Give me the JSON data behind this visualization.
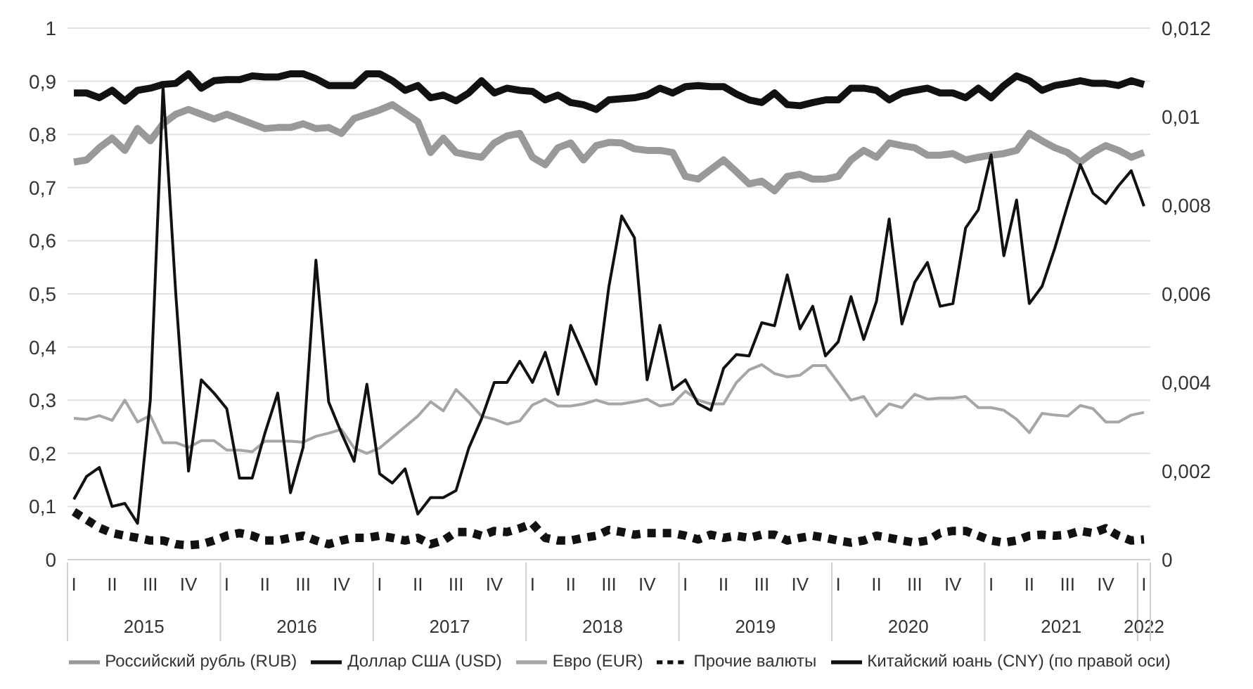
{
  "chart_data": {
    "type": "line",
    "categories": [
      "I",
      null,
      null,
      "II",
      null,
      null,
      "III",
      null,
      null,
      "IV",
      null,
      null,
      "I",
      null,
      null,
      "II",
      null,
      null,
      "III",
      null,
      null,
      "IV",
      null,
      null,
      "I",
      null,
      null,
      "II",
      null,
      null,
      "III",
      null,
      null,
      "IV",
      null,
      null,
      "I",
      null,
      null,
      "II",
      null,
      null,
      "III",
      null,
      null,
      "IV",
      null,
      null,
      "I",
      null,
      null,
      "II",
      null,
      null,
      "III",
      null,
      null,
      "IV",
      null,
      null,
      "I",
      null,
      null,
      "II",
      null,
      null,
      "III",
      null,
      null,
      "IV",
      null,
      null,
      "I",
      null,
      null,
      "II",
      null,
      null,
      "III",
      null,
      null,
      "IV",
      null,
      null,
      "I"
    ],
    "annotations": [
      "2015",
      "2016",
      "2017",
      "2018",
      "2019",
      "2020",
      "2021",
      "2022"
    ],
    "series": [
      {
        "name": "Российский рубль (RUB)",
        "color": "#999999",
        "values": [
          0.748,
          0.752,
          0.775,
          0.793,
          0.77,
          0.811,
          0.788,
          0.82,
          0.838,
          0.847,
          0.838,
          0.829,
          0.838,
          0.829,
          0.82,
          0.811,
          0.813,
          0.813,
          0.82,
          0.811,
          0.813,
          0.802,
          0.83,
          0.838,
          0.846,
          0.856,
          0.84,
          0.824,
          0.766,
          0.793,
          0.766,
          0.761,
          0.757,
          0.784,
          0.797,
          0.802,
          0.757,
          0.743,
          0.775,
          0.784,
          0.752,
          0.779,
          0.785,
          0.784,
          0.773,
          0.77,
          0.77,
          0.766,
          0.721,
          0.716,
          0.734,
          0.752,
          0.73,
          0.707,
          0.712,
          0.694,
          0.721,
          0.725,
          0.716,
          0.716,
          0.721,
          0.752,
          0.77,
          0.757,
          0.784,
          0.779,
          0.775,
          0.761,
          0.761,
          0.764,
          0.752,
          0.757,
          0.761,
          0.764,
          0.77,
          0.802,
          0.788,
          0.775,
          0.766,
          0.748,
          0.766,
          0.779,
          0.77,
          0.757,
          0.766
        ]
      },
      {
        "name": "Доллар США (USD)",
        "color": "#111111",
        "values": [
          0.878,
          0.878,
          0.869,
          0.883,
          0.863,
          0.883,
          0.887,
          0.894,
          0.896,
          0.914,
          0.887,
          0.901,
          0.903,
          0.903,
          0.91,
          0.908,
          0.908,
          0.914,
          0.914,
          0.905,
          0.892,
          0.892,
          0.892,
          0.914,
          0.914,
          0.901,
          0.883,
          0.892,
          0.869,
          0.874,
          0.863,
          0.878,
          0.901,
          0.878,
          0.887,
          0.883,
          0.881,
          0.865,
          0.874,
          0.86,
          0.856,
          0.847,
          0.865,
          0.867,
          0.869,
          0.874,
          0.887,
          0.878,
          0.89,
          0.892,
          0.89,
          0.89,
          0.876,
          0.865,
          0.86,
          0.878,
          0.856,
          0.854,
          0.86,
          0.865,
          0.865,
          0.887,
          0.887,
          0.883,
          0.865,
          0.878,
          0.883,
          0.887,
          0.878,
          0.878,
          0.869,
          0.887,
          0.869,
          0.892,
          0.91,
          0.901,
          0.883,
          0.892,
          0.896,
          0.901,
          0.896,
          0.896,
          0.892,
          0.901,
          0.894
        ]
      },
      {
        "name": "Евро (EUR)",
        "color": "#a6a6a6",
        "values": [
          0.266,
          0.264,
          0.271,
          0.262,
          0.3,
          0.259,
          0.271,
          0.22,
          0.22,
          0.211,
          0.224,
          0.224,
          0.206,
          0.206,
          0.203,
          0.223,
          0.223,
          0.223,
          0.221,
          0.232,
          0.238,
          0.245,
          0.21,
          0.2,
          0.21,
          0.23,
          0.25,
          0.27,
          0.297,
          0.28,
          0.32,
          0.297,
          0.27,
          0.264,
          0.255,
          0.261,
          0.291,
          0.302,
          0.289,
          0.289,
          0.293,
          0.3,
          0.293,
          0.293,
          0.297,
          0.302,
          0.289,
          0.293,
          0.317,
          0.3,
          0.293,
          0.293,
          0.333,
          0.357,
          0.367,
          0.35,
          0.344,
          0.347,
          0.365,
          0.365,
          0.333,
          0.3,
          0.307,
          0.27,
          0.293,
          0.286,
          0.311,
          0.302,
          0.304,
          0.304,
          0.307,
          0.286,
          0.286,
          0.281,
          0.264,
          0.239,
          0.275,
          0.272,
          0.27,
          0.29,
          0.284,
          0.259,
          0.259,
          0.272,
          0.277
        ]
      },
      {
        "name": "Прочие валюты",
        "color": "#111111",
        "line_style": "dotted",
        "values": [
          0.09,
          0.075,
          0.06,
          0.05,
          0.045,
          0.041,
          0.036,
          0.036,
          0.029,
          0.027,
          0.029,
          0.036,
          0.045,
          0.05,
          0.045,
          0.036,
          0.036,
          0.041,
          0.045,
          0.036,
          0.029,
          0.036,
          0.041,
          0.041,
          0.045,
          0.041,
          0.036,
          0.041,
          0.029,
          0.036,
          0.052,
          0.052,
          0.045,
          0.054,
          0.052,
          0.059,
          0.068,
          0.041,
          0.036,
          0.036,
          0.041,
          0.045,
          0.056,
          0.052,
          0.047,
          0.05,
          0.05,
          0.05,
          0.045,
          0.038,
          0.047,
          0.041,
          0.045,
          0.041,
          0.047,
          0.047,
          0.036,
          0.041,
          0.045,
          0.041,
          0.036,
          0.032,
          0.036,
          0.045,
          0.041,
          0.036,
          0.032,
          0.036,
          0.05,
          0.054,
          0.054,
          0.045,
          0.036,
          0.032,
          0.036,
          0.045,
          0.047,
          0.045,
          0.047,
          0.054,
          0.05,
          0.059,
          0.045,
          0.036,
          0.038
        ]
      },
      {
        "name": "Китайский юань (CNY) (по правой оси)",
        "color": "#111111",
        "axis": "y2",
        "values": [
          0.00136,
          0.00188,
          0.00208,
          0.0012,
          0.00127,
          0.00082,
          0.0036,
          0.01068,
          0.006,
          0.002,
          0.00406,
          0.00376,
          0.00341,
          0.00184,
          0.00184,
          0.00286,
          0.00376,
          0.00151,
          0.00254,
          0.00676,
          0.00356,
          0.00286,
          0.00222,
          0.00396,
          0.00194,
          0.00173,
          0.00205,
          0.00103,
          0.0014,
          0.0014,
          0.00156,
          0.00252,
          0.00318,
          0.004,
          0.004,
          0.00448,
          0.004,
          0.00468,
          0.00373,
          0.00529,
          0.00464,
          0.00396,
          0.00617,
          0.00776,
          0.00727,
          0.00406,
          0.00529,
          0.00384,
          0.00406,
          0.00352,
          0.00337,
          0.00432,
          0.00463,
          0.0046,
          0.00535,
          0.00528,
          0.00643,
          0.00521,
          0.00572,
          0.0046,
          0.00492,
          0.00594,
          0.00497,
          0.00583,
          0.00769,
          0.00532,
          0.00626,
          0.00671,
          0.00572,
          0.00578,
          0.00749,
          0.0079,
          0.00914,
          0.00686,
          0.00812,
          0.00578,
          0.00617,
          0.00703,
          0.008,
          0.00892,
          0.00827,
          0.00804,
          0.00844,
          0.00878,
          0.00798
        ]
      }
    ],
    "ylim": [
      0,
      1
    ],
    "yticks": [
      0,
      {
        "value": 0.1,
        "label": "0,1"
      },
      {
        "value": 0.2,
        "label": "0,2"
      },
      {
        "value": 0.3,
        "label": "0,3"
      },
      {
        "value": 0.4,
        "label": "0,4"
      },
      {
        "value": 0.5,
        "label": "0,5"
      },
      {
        "value": 0.6,
        "label": "0,6"
      },
      {
        "value": 0.7,
        "label": "0,7"
      },
      {
        "value": 0.8,
        "label": "0,8"
      },
      {
        "value": 0.9,
        "label": "0,9"
      },
      1
    ],
    "y2lim": [
      0,
      0.012
    ],
    "y2ticks": [
      0,
      {
        "value": 0.002,
        "label": "0,002"
      },
      {
        "value": 0.004,
        "label": "0,004"
      },
      {
        "value": 0.006,
        "label": "0,006"
      },
      {
        "value": 0.008,
        "label": "0,008"
      },
      {
        "value": 0.01,
        "label": "0,01"
      },
      {
        "value": 0.012,
        "label": "0,012"
      }
    ],
    "grid": "y",
    "legend": "bottom"
  }
}
